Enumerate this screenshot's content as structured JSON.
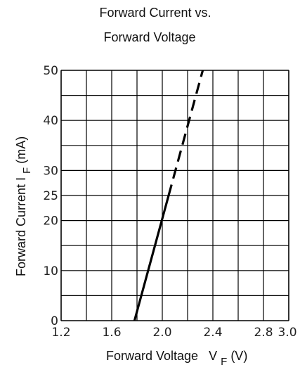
{
  "chart_data": {
    "type": "line",
    "title_line1": "Forward Current vs.",
    "title_line2": "Forward Voltage",
    "xlabel_main": "Forward Voltage",
    "xlabel_sym": "V",
    "xlabel_sub": "F",
    "xlabel_unit": "(V)",
    "ylabel_main": "Forward Current I",
    "ylabel_sub": "F",
    "ylabel_unit": "(mA)",
    "xlim": [
      1.2,
      3.0
    ],
    "ylim": [
      0,
      50
    ],
    "x_ticks": [
      "1.2",
      "1.6",
      "2.0",
      "2.4",
      "2.8",
      "3.0"
    ],
    "y_ticks": [
      "0",
      "10",
      "20",
      "25",
      "30",
      "40",
      "50"
    ],
    "grid": true,
    "series": [
      {
        "style": "solid",
        "x": [
          1.78,
          2.05
        ],
        "y": [
          0,
          25
        ]
      },
      {
        "style": "dashed",
        "x": [
          2.05,
          2.32
        ],
        "y": [
          25,
          50
        ]
      }
    ]
  }
}
